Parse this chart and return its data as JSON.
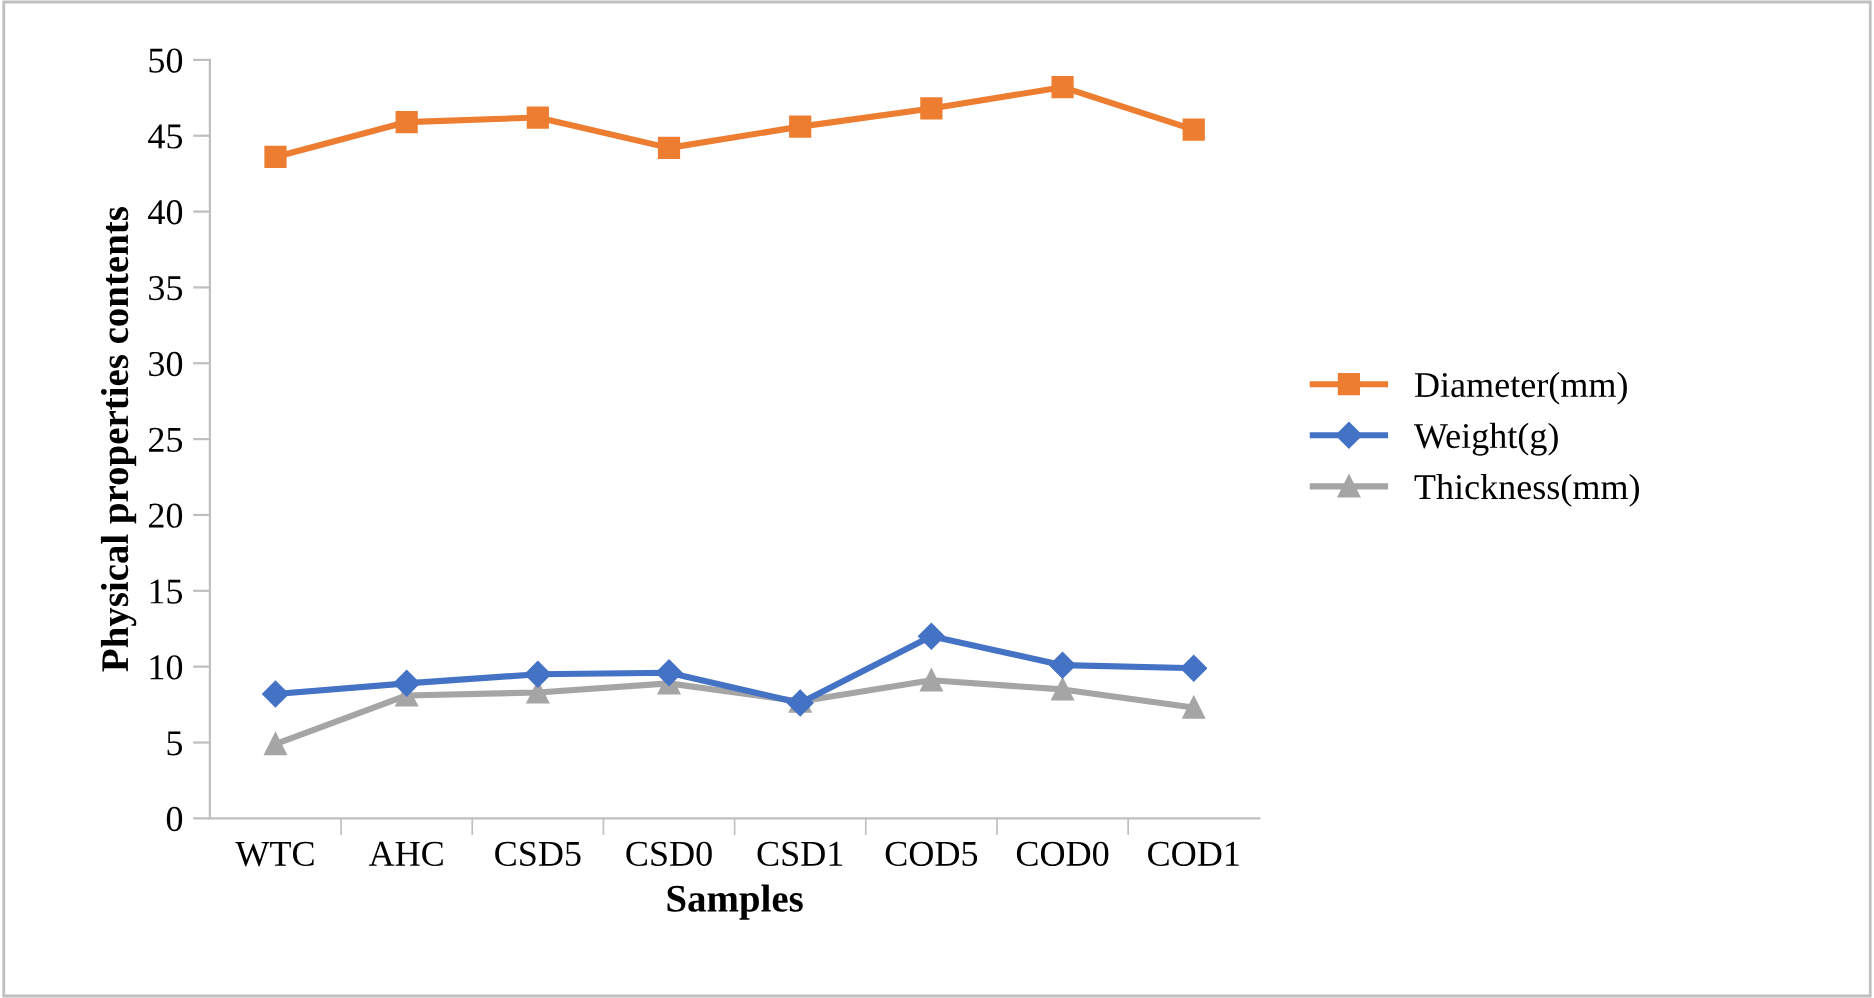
{
  "chart_data": {
    "type": "line",
    "xlabel": "Samples",
    "ylabel": "Physical properties contents",
    "categories": [
      "WTC",
      "AHC",
      "CSD5",
      "CSD0",
      "CSD1",
      "COD5",
      "COD0",
      "COD1"
    ],
    "series": [
      {
        "name": "Diameter(mm)",
        "color": "#ed7d31",
        "marker": "square",
        "values": [
          43.6,
          45.9,
          46.2,
          44.2,
          45.6,
          46.8,
          48.2,
          45.4
        ]
      },
      {
        "name": "Weight(g)",
        "color": "#4472c4",
        "marker": "diamond",
        "values": [
          8.2,
          8.9,
          9.5,
          9.6,
          7.6,
          12.0,
          10.1,
          9.9
        ]
      },
      {
        "name": "Thickness(mm)",
        "color": "#a5a5a5",
        "marker": "triangle",
        "values": [
          4.9,
          8.1,
          8.3,
          8.9,
          7.7,
          9.1,
          8.5,
          7.3
        ]
      }
    ],
    "ylim": [
      0,
      50
    ],
    "yticks": [
      0,
      5,
      10,
      15,
      20,
      25,
      30,
      35,
      40,
      45,
      50
    ],
    "grid": false,
    "legend": "right"
  }
}
